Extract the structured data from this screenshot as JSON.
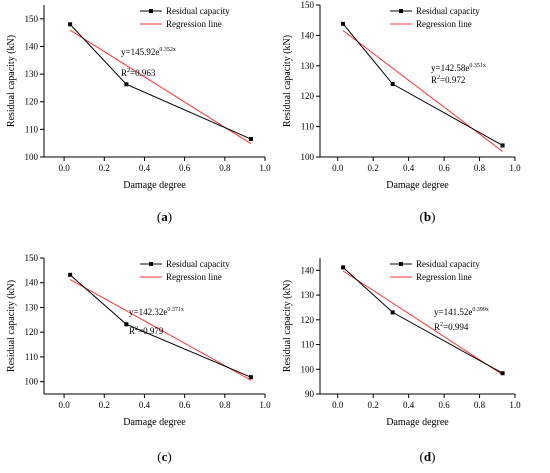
{
  "panels": [
    {
      "label": "(a)",
      "eq_prefix": "y=145.92e",
      "eq_exp": "0.352x",
      "r2_value": "=0.963"
    },
    {
      "label": "(b)",
      "eq_prefix": "y=142.58e",
      "eq_exp": "0.351x",
      "r2_value": "=0.972"
    },
    {
      "label": "(c)",
      "eq_prefix": "y=142.32e",
      "eq_exp": "0.371x",
      "r2_value": "=0.979"
    },
    {
      "label": "(d)",
      "eq_prefix": "y=141.52e",
      "eq_exp": "0.399x",
      "r2_value": "=0.994"
    }
  ],
  "r2_letter": "R",
  "r2_sup": "2",
  "colors": {
    "data_series": "#000000",
    "regression": "#ff3333",
    "axis": "#000000"
  },
  "chart_data": [
    {
      "type": "line",
      "xlabel": "Damage degree",
      "ylabel": "Residual capacity (kN)",
      "xlim": [
        -0.1,
        1.0
      ],
      "ylim": [
        100,
        155
      ],
      "xticks": [
        0.0,
        0.2,
        0.4,
        0.6,
        0.8,
        1.0
      ],
      "yticks": [
        100,
        110,
        120,
        130,
        140,
        150
      ],
      "legend_position": "top-right",
      "series": [
        {
          "name": "Residual capacity",
          "x": [
            0.03,
            0.31,
            0.93
          ],
          "y": [
            148,
            126.3,
            106.5
          ]
        },
        {
          "name": "Regression line",
          "x": [
            0.03,
            0.93
          ],
          "y": [
            145.9,
            104.8
          ]
        }
      ]
    },
    {
      "type": "line",
      "xlabel": "Damage degree",
      "ylabel": "Residual capacity (kN)",
      "xlim": [
        -0.1,
        1.0
      ],
      "ylim": [
        100,
        150
      ],
      "xticks": [
        0.0,
        0.2,
        0.4,
        0.6,
        0.8,
        1.0
      ],
      "yticks": [
        100,
        110,
        120,
        130,
        140,
        150
      ],
      "legend_position": "top-right",
      "series": [
        {
          "name": "Residual capacity",
          "x": [
            0.03,
            0.31,
            0.93
          ],
          "y": [
            143.8,
            124,
            103.8
          ]
        },
        {
          "name": "Regression line",
          "x": [
            0.03,
            0.93
          ],
          "y": [
            141.6,
            101.8
          ]
        }
      ]
    },
    {
      "type": "line",
      "xlabel": "Damage degree",
      "ylabel": "Residual capacity (kN)",
      "xlim": [
        -0.1,
        1.0
      ],
      "ylim": [
        95,
        150
      ],
      "xticks": [
        0.0,
        0.2,
        0.4,
        0.6,
        0.8,
        1.0
      ],
      "yticks": [
        100,
        110,
        120,
        130,
        140,
        150
      ],
      "legend_position": "top-right",
      "series": [
        {
          "name": "Residual capacity",
          "x": [
            0.03,
            0.31,
            0.93
          ],
          "y": [
            143.2,
            123.2,
            101.8
          ]
        },
        {
          "name": "Regression line",
          "x": [
            0.03,
            0.93
          ],
          "y": [
            141.3,
            100.6
          ]
        }
      ]
    },
    {
      "type": "line",
      "xlabel": "Damage degree",
      "ylabel": "Residual capacity (kN)",
      "xlim": [
        -0.1,
        1.0
      ],
      "ylim": [
        90,
        145
      ],
      "xticks": [
        0.0,
        0.2,
        0.4,
        0.6,
        0.8,
        1.0
      ],
      "yticks": [
        90,
        100,
        110,
        120,
        130,
        140
      ],
      "legend_position": "top-right",
      "series": [
        {
          "name": "Residual capacity",
          "x": [
            0.03,
            0.31,
            0.93
          ],
          "y": [
            141.2,
            123,
            98.4
          ]
        },
        {
          "name": "Regression line",
          "x": [
            0.03,
            0.93
          ],
          "y": [
            139.8,
            97.8
          ]
        }
      ]
    }
  ]
}
